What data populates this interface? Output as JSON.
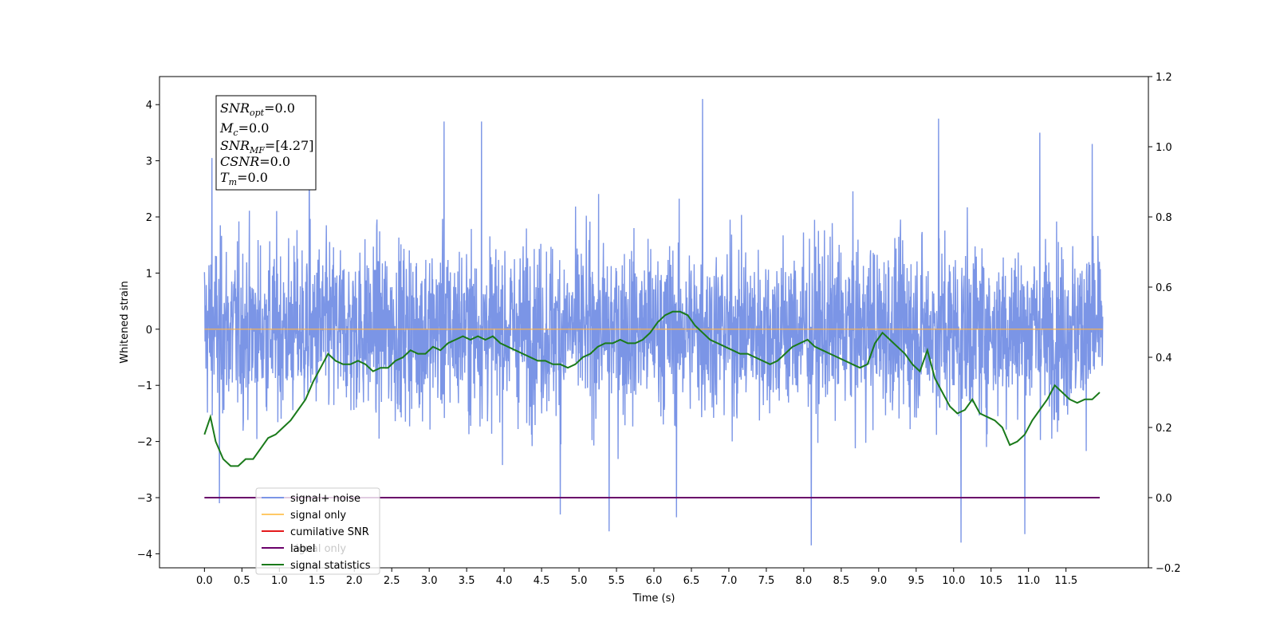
{
  "chart_data": {
    "type": "line",
    "xlabel": "Time (s)",
    "ylabel": "Whitened strain",
    "xlim": [
      -0.6,
      12.6
    ],
    "ylim": [
      -4.25,
      4.5
    ],
    "ylim_right": [
      -0.2,
      1.2
    ],
    "x_ticks": [
      "0.0",
      "0.5",
      "1.0",
      "1.5",
      "2.0",
      "2.5",
      "3.0",
      "3.5",
      "4.0",
      "4.5",
      "5.0",
      "5.5",
      "6.0",
      "6.5",
      "7.0",
      "7.5",
      "8.0",
      "8.5",
      "9.0",
      "9.5",
      "10.0",
      "10.5",
      "11.0",
      "11.5"
    ],
    "y_ticks": [
      "4",
      "3",
      "2",
      "1",
      "0",
      "−1",
      "−2",
      "−3",
      "−4"
    ],
    "y_ticks_right": [
      "1.2",
      "1.0",
      "0.8",
      "0.6",
      "0.4",
      "0.2",
      "0.0",
      "−0.2"
    ],
    "grid": false,
    "legend_position": "lower-left",
    "series": [
      {
        "name": "signal+ noise",
        "color": "#7b95e6",
        "description": "dense noise, approx range -3.8 to 4.1",
        "x_range": [
          0.0,
          11.99
        ],
        "peaks": [
          {
            "x": 0.1,
            "y": 3.05
          },
          {
            "x": 1.4,
            "y": 3.2
          },
          {
            "x": 3.2,
            "y": 3.7
          },
          {
            "x": 3.7,
            "y": 3.7
          },
          {
            "x": 6.65,
            "y": 4.1
          },
          {
            "x": 9.8,
            "y": 3.75
          },
          {
            "x": 11.15,
            "y": 3.5
          },
          {
            "x": 11.85,
            "y": 3.3
          }
        ],
        "troughs": [
          {
            "x": 0.2,
            "y": -3.1
          },
          {
            "x": 4.75,
            "y": -3.3
          },
          {
            "x": 5.4,
            "y": -3.6
          },
          {
            "x": 6.3,
            "y": -3.35
          },
          {
            "x": 8.1,
            "y": -3.85
          },
          {
            "x": 10.1,
            "y": -3.8
          },
          {
            "x": 10.95,
            "y": -3.65
          }
        ]
      },
      {
        "name": "signal only",
        "color": "#ffb347",
        "axis": "left",
        "x": [
          0.0,
          11.99
        ],
        "y": [
          0.0,
          0.0
        ]
      },
      {
        "name": "cumilative SNR",
        "color": "#e41a1c",
        "axis": "right",
        "x": [],
        "y": []
      },
      {
        "name": "label",
        "color": "#6a006a",
        "axis": "right",
        "x": [
          0.0,
          11.95
        ],
        "y": [
          0.0,
          0.0
        ]
      },
      {
        "name": "signal statistics",
        "color": "#1a7a1a",
        "axis": "right",
        "x": [
          0.0,
          0.08,
          0.15,
          0.25,
          0.35,
          0.45,
          0.55,
          0.65,
          0.75,
          0.85,
          0.95,
          1.05,
          1.15,
          1.25,
          1.35,
          1.45,
          1.55,
          1.65,
          1.75,
          1.85,
          1.95,
          2.05,
          2.15,
          2.25,
          2.35,
          2.45,
          2.55,
          2.65,
          2.75,
          2.85,
          2.95,
          3.05,
          3.15,
          3.25,
          3.35,
          3.45,
          3.55,
          3.65,
          3.75,
          3.85,
          3.95,
          4.05,
          4.15,
          4.25,
          4.35,
          4.45,
          4.55,
          4.65,
          4.75,
          4.85,
          4.95,
          5.05,
          5.15,
          5.25,
          5.35,
          5.45,
          5.55,
          5.65,
          5.75,
          5.85,
          5.95,
          6.05,
          6.15,
          6.25,
          6.35,
          6.45,
          6.55,
          6.65,
          6.75,
          6.85,
          6.95,
          7.05,
          7.15,
          7.25,
          7.35,
          7.45,
          7.55,
          7.65,
          7.75,
          7.85,
          7.95,
          8.05,
          8.15,
          8.25,
          8.35,
          8.45,
          8.55,
          8.65,
          8.75,
          8.85,
          8.95,
          9.05,
          9.15,
          9.25,
          9.35,
          9.45,
          9.55,
          9.65,
          9.75,
          9.85,
          9.95,
          10.05,
          10.15,
          10.25,
          10.35,
          10.45,
          10.55,
          10.65,
          10.75,
          10.85,
          10.95,
          11.05,
          11.15,
          11.25,
          11.35,
          11.45,
          11.55,
          11.65,
          11.75,
          11.85,
          11.95
        ],
        "y": [
          0.18,
          0.23,
          0.16,
          0.11,
          0.09,
          0.09,
          0.11,
          0.11,
          0.14,
          0.17,
          0.18,
          0.2,
          0.22,
          0.25,
          0.28,
          0.33,
          0.37,
          0.41,
          0.39,
          0.38,
          0.38,
          0.39,
          0.38,
          0.36,
          0.37,
          0.37,
          0.39,
          0.4,
          0.42,
          0.41,
          0.41,
          0.43,
          0.42,
          0.44,
          0.45,
          0.46,
          0.45,
          0.46,
          0.45,
          0.46,
          0.44,
          0.43,
          0.42,
          0.41,
          0.4,
          0.39,
          0.39,
          0.38,
          0.38,
          0.37,
          0.38,
          0.4,
          0.41,
          0.43,
          0.44,
          0.44,
          0.45,
          0.44,
          0.44,
          0.45,
          0.47,
          0.5,
          0.52,
          0.53,
          0.53,
          0.52,
          0.49,
          0.47,
          0.45,
          0.44,
          0.43,
          0.42,
          0.41,
          0.41,
          0.4,
          0.39,
          0.38,
          0.39,
          0.41,
          0.43,
          0.44,
          0.45,
          0.43,
          0.42,
          0.41,
          0.4,
          0.39,
          0.38,
          0.37,
          0.38,
          0.44,
          0.47,
          0.45,
          0.43,
          0.41,
          0.38,
          0.36,
          0.42,
          0.34,
          0.3,
          0.26,
          0.24,
          0.25,
          0.28,
          0.24,
          0.23,
          0.22,
          0.2,
          0.15,
          0.16,
          0.18,
          0.22,
          0.25,
          0.28,
          0.32,
          0.3,
          0.28,
          0.27,
          0.28,
          0.28,
          0.3
        ]
      }
    ]
  },
  "info_box": {
    "snr_opt": {
      "main": "SNR",
      "sub": "opt",
      "value": "=0.0"
    },
    "mc": {
      "main": "M",
      "sub": "c",
      "value": "=0.0"
    },
    "snr_mf": {
      "main": "SNR",
      "sub": "MF",
      "value": "=[4.27]"
    },
    "csnr": {
      "main": "CSNR",
      "sub": "",
      "value": "=0.0"
    },
    "tm": {
      "main": "T",
      "sub": "m",
      "value": "=0.0"
    }
  },
  "legend": {
    "items": [
      "signal+ noise",
      "signal only",
      "cumilative SNR",
      "label",
      "signal statistics"
    ],
    "hidden_text": "signal only"
  }
}
